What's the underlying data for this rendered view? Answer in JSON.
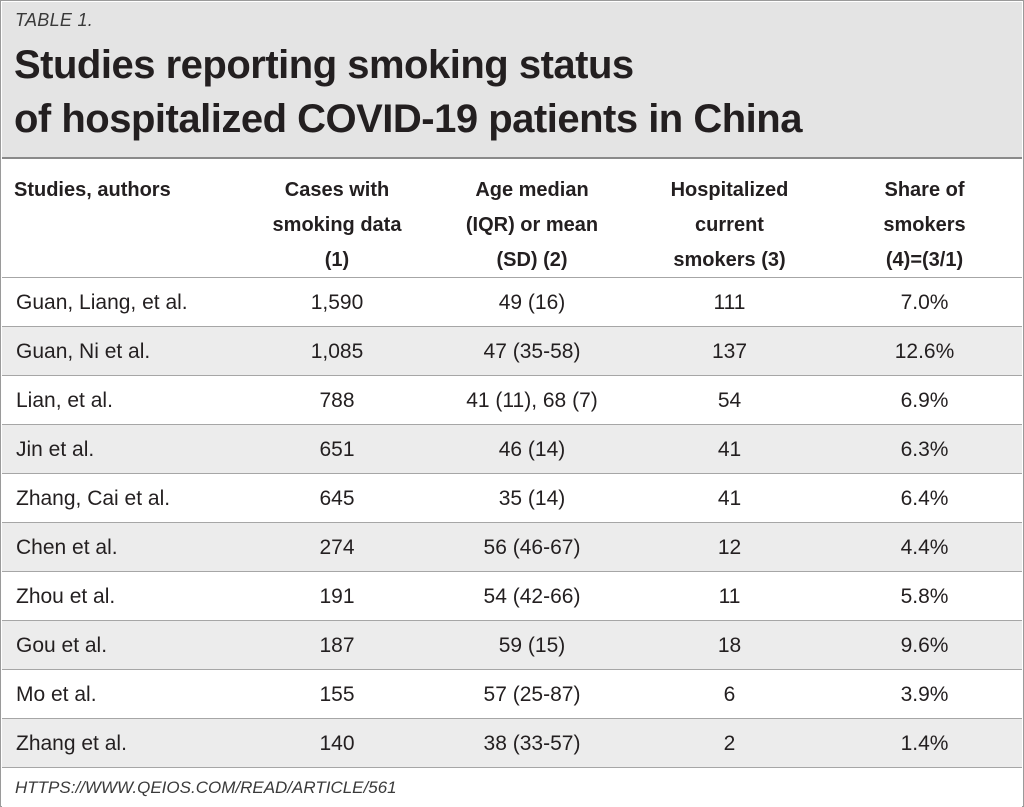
{
  "table_label": "TABLE 1.",
  "title": {
    "line1": "Studies reporting smoking status",
    "line2": "of hospitalized COVID-19 patients in China"
  },
  "columns": [
    "Studies, authors",
    "Cases with\nsmoking data\n(1)",
    "Age median\n(IQR) or mean\n(SD) (2)",
    "Hospitalized\ncurrent\nsmokers (3)",
    "Share of\nsmokers\n(4)=(3/1)"
  ],
  "rows": [
    [
      "Guan, Liang, et al.",
      "1,590",
      "49 (16)",
      "111",
      "7.0%"
    ],
    [
      "Guan, Ni et al.",
      "1,085",
      "47 (35-58)",
      "137",
      "12.6%"
    ],
    [
      "Lian, et al.",
      "788",
      "41 (11), 68 (7)",
      "54",
      "6.9%"
    ],
    [
      "Jin et al.",
      "651",
      "46 (14)",
      "41",
      "6.3%"
    ],
    [
      "Zhang, Cai et al.",
      "645",
      "35 (14)",
      "41",
      "6.4%"
    ],
    [
      "Chen et al.",
      "274",
      "56 (46-67)",
      "12",
      "4.4%"
    ],
    [
      "Zhou et al.",
      "191",
      "54 (42-66)",
      "11",
      "5.8%"
    ],
    [
      "Gou et al.",
      "187",
      "59 (15)",
      "18",
      "9.6%"
    ],
    [
      "Mo et al.",
      "155",
      "57 (25-87)",
      "6",
      "3.9%"
    ],
    [
      "Zhang et al.",
      "140",
      "38 (33-57)",
      "2",
      "1.4%"
    ]
  ],
  "source": "HTTPS://WWW.QEIOS.COM/READ/ARTICLE/561",
  "colors": {
    "header_bg": "#e4e4e4",
    "alt_row_bg": "#ececec",
    "text": "#231f20",
    "rule": "#a6a6a6"
  }
}
